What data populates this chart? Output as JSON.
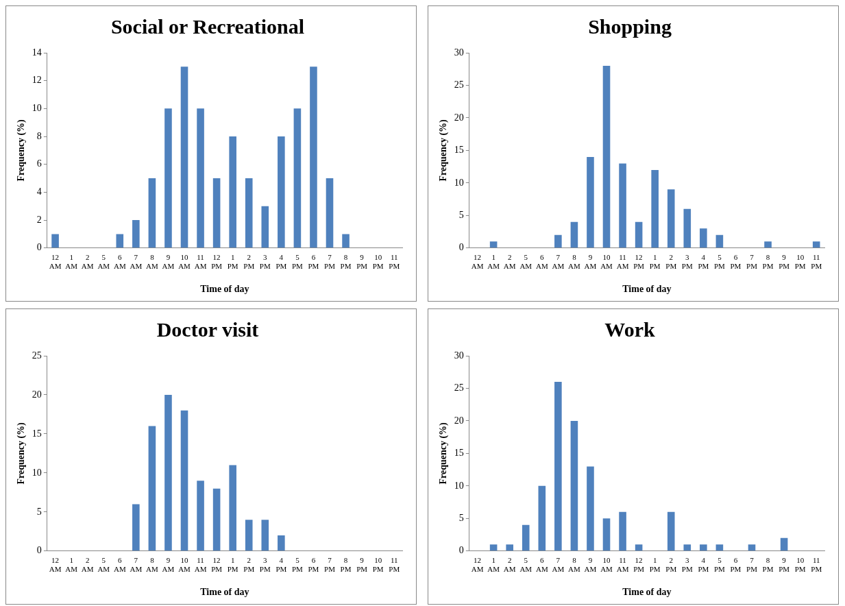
{
  "chart_data": [
    {
      "type": "bar",
      "title": "Social or Recreational",
      "xlabel": "Time of day",
      "ylabel": "Frequency (%)",
      "categories": [
        "12 AM",
        "1 AM",
        "2 AM",
        "5 AM",
        "6 AM",
        "7 AM",
        "8 AM",
        "9 AM",
        "10 AM",
        "11 AM",
        "12 PM",
        "1 PM",
        "2 PM",
        "3 PM",
        "4 PM",
        "5 PM",
        "6 PM",
        "7 PM",
        "8 PM",
        "9 PM",
        "10 PM",
        "11 PM"
      ],
      "color": "#4f81bd",
      "values": [
        1,
        0,
        0,
        0,
        1,
        2,
        5,
        10,
        13,
        10,
        5,
        8,
        5,
        3,
        8,
        10,
        13,
        5,
        1,
        0,
        0,
        0
      ],
      "ylim": [
        0,
        14
      ],
      "yticks": [
        0,
        2,
        4,
        6,
        8,
        10,
        12,
        14
      ],
      "grid": false,
      "legend": false
    },
    {
      "type": "bar",
      "title": "Shopping",
      "xlabel": "Time of day",
      "ylabel": "Frequency (%)",
      "categories": [
        "12 AM",
        "1 AM",
        "2 AM",
        "5 AM",
        "6 AM",
        "7 AM",
        "8 AM",
        "9 AM",
        "10 AM",
        "11 AM",
        "12 PM",
        "1 PM",
        "2 PM",
        "3 PM",
        "4 PM",
        "5 PM",
        "6 PM",
        "7 PM",
        "8 PM",
        "9 PM",
        "10 PM",
        "11 PM"
      ],
      "color": "#4f81bd",
      "values": [
        0,
        1,
        0,
        0,
        0,
        2,
        4,
        14,
        28,
        13,
        4,
        12,
        9,
        6,
        3,
        2,
        0,
        0,
        1,
        0,
        0,
        1
      ],
      "ylim": [
        0,
        30
      ],
      "yticks": [
        0,
        5,
        10,
        15,
        20,
        25,
        30
      ],
      "grid": false,
      "legend": false
    },
    {
      "type": "bar",
      "title": "Doctor visit",
      "xlabel": "Time of day",
      "ylabel": "Frequency (%)",
      "categories": [
        "12 AM",
        "1 AM",
        "2 AM",
        "5 AM",
        "6 AM",
        "7 AM",
        "8 AM",
        "9 AM",
        "10 AM",
        "11 AM",
        "12 PM",
        "1 PM",
        "2 PM",
        "3 PM",
        "4 PM",
        "5 PM",
        "6 PM",
        "7 PM",
        "8 PM",
        "9 PM",
        "10 PM",
        "11 PM"
      ],
      "color": "#4f81bd",
      "values": [
        0,
        0,
        0,
        0,
        0,
        6,
        16,
        20,
        18,
        9,
        8,
        11,
        4,
        4,
        2,
        0,
        0,
        0,
        0,
        0,
        0,
        0
      ],
      "ylim": [
        0,
        25
      ],
      "yticks": [
        0,
        5,
        10,
        15,
        20,
        25
      ],
      "grid": false,
      "legend": false
    },
    {
      "type": "bar",
      "title": "Work",
      "xlabel": "Time of day",
      "ylabel": "Frequency (%)",
      "categories": [
        "12 AM",
        "1 AM",
        "2 AM",
        "5 AM",
        "6 AM",
        "7 AM",
        "8 AM",
        "9 AM",
        "10 AM",
        "11 AM",
        "12 PM",
        "1 PM",
        "2 PM",
        "3 PM",
        "4 PM",
        "5 PM",
        "6 PM",
        "7 PM",
        "8 PM",
        "9 PM",
        "10 PM",
        "11 PM"
      ],
      "color": "#4f81bd",
      "values": [
        0,
        1,
        1,
        4,
        10,
        26,
        20,
        13,
        5,
        6,
        1,
        0,
        6,
        1,
        1,
        1,
        0,
        1,
        0,
        2,
        0,
        0
      ],
      "ylim": [
        0,
        30
      ],
      "yticks": [
        0,
        5,
        10,
        15,
        20,
        25,
        30
      ],
      "grid": false,
      "legend": false
    }
  ]
}
